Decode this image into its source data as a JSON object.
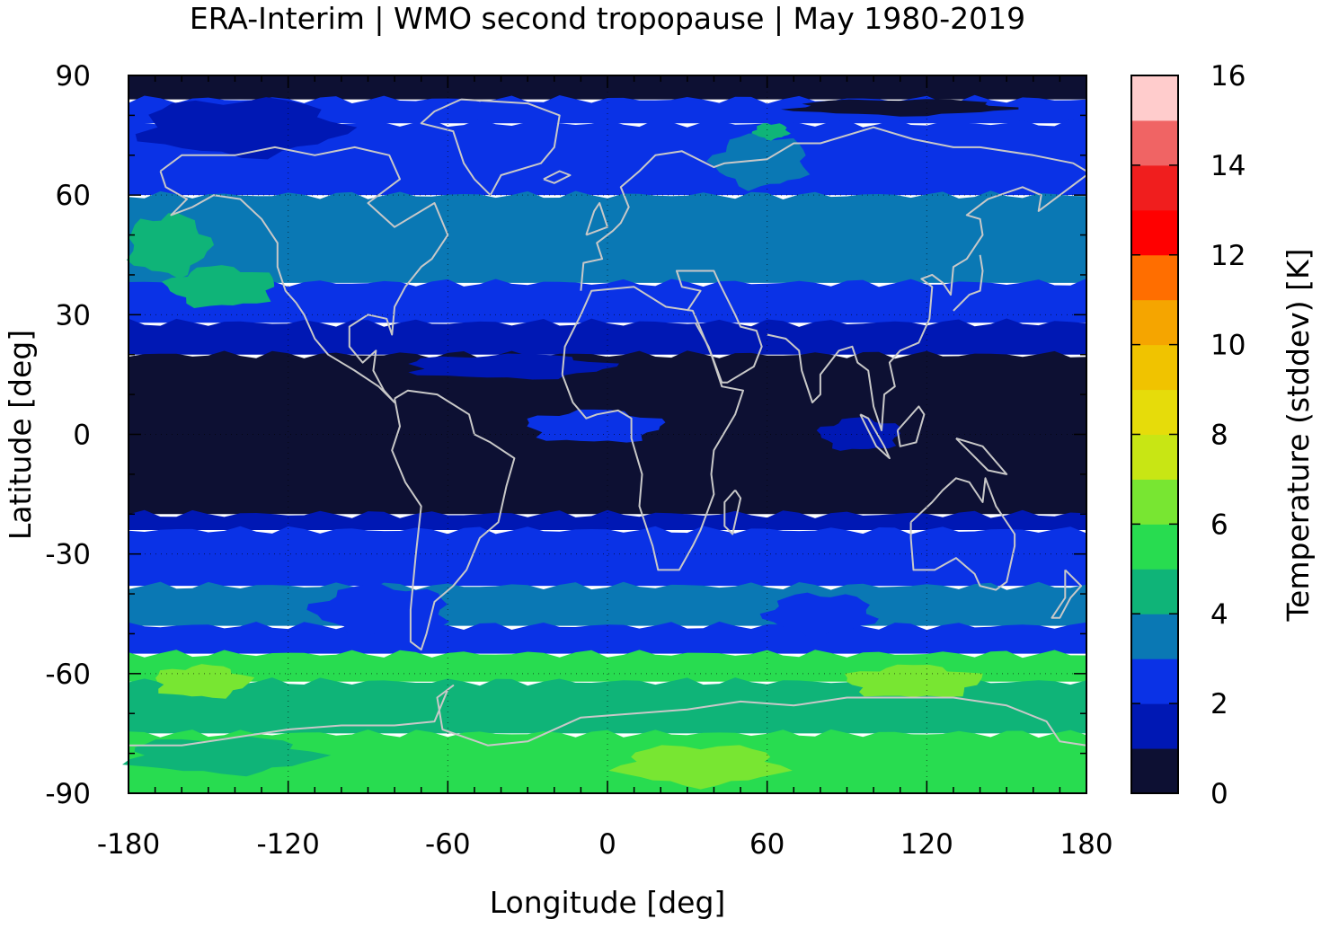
{
  "chart_data": {
    "type": "heatmap",
    "title": "ERA-Interim | WMO second tropopause | May 1980-2019",
    "xlabel": "Longitude [deg]",
    "ylabel": "Latitude [deg]",
    "colorbar_label": "Temperature (stddev) [K]",
    "xlim": [
      -180,
      180
    ],
    "ylim": [
      -90,
      90
    ],
    "xticks": [
      -180,
      -120,
      -60,
      0,
      60,
      120,
      180
    ],
    "yticks": [
      90,
      60,
      30,
      0,
      -30,
      -60,
      -90
    ],
    "xtick_labels": [
      "-180",
      "-120",
      "-60",
      "0",
      "60",
      "120",
      "180"
    ],
    "ytick_labels": [
      "90",
      "60",
      "30",
      "0",
      "-30",
      "-60",
      "-90"
    ],
    "colorbar_ticks": [
      0,
      2,
      4,
      6,
      8,
      10,
      12,
      14,
      16
    ],
    "colorbar_tick_labels": [
      "0",
      "2",
      "4",
      "6",
      "8",
      "10",
      "12",
      "14",
      "16"
    ],
    "colorbar_range": [
      0,
      16
    ],
    "colorbar_step": 1,
    "colorbar_colors": [
      "#0d1033",
      "#0018b4",
      "#0a32e6",
      "#0a78b4",
      "#0fb478",
      "#28dc50",
      "#78e632",
      "#c8e614",
      "#e6dc0a",
      "#f0c300",
      "#f5a500",
      "#ff6e00",
      "#ff0000",
      "#f01e1e",
      "#f06464",
      "#ffcccc"
    ],
    "grid": true,
    "coastlines_color": "#c8c8c8",
    "latitude_bands": [
      {
        "lat_range": [
          84,
          90
        ],
        "value": 0.5
      },
      {
        "lat_range": [
          78,
          84
        ],
        "value": 2.5
      },
      {
        "lat_range": [
          60,
          78
        ],
        "value": 2.5
      },
      {
        "lat_range": [
          38,
          60
        ],
        "value": 3.5
      },
      {
        "lat_range": [
          28,
          38
        ],
        "value": 2.5
      },
      {
        "lat_range": [
          20,
          28
        ],
        "value": 1.5
      },
      {
        "lat_range": [
          -20,
          20
        ],
        "value": 0.5
      },
      {
        "lat_range": [
          -24,
          -20
        ],
        "value": 1.5
      },
      {
        "lat_range": [
          -38,
          -24
        ],
        "value": 2.5
      },
      {
        "lat_range": [
          -48,
          -38
        ],
        "value": 3.5
      },
      {
        "lat_range": [
          -55,
          -48
        ],
        "value": 2.5
      },
      {
        "lat_range": [
          -62,
          -55
        ],
        "value": 5.5
      },
      {
        "lat_range": [
          -75,
          -62
        ],
        "value": 4.5
      },
      {
        "lat_range": [
          -90,
          -75
        ],
        "value": 5.5
      }
    ],
    "patches": [
      {
        "lon_range": [
          5,
          65
        ],
        "lat_range": [
          -88,
          -78
        ],
        "value": 6.5
      },
      {
        "lon_range": [
          -180,
          -110
        ],
        "lat_range": [
          -85,
          -76
        ],
        "value": 4.5
      },
      {
        "lon_range": [
          -170,
          -135
        ],
        "lat_range": [
          -66,
          -58
        ],
        "value": 6.5
      },
      {
        "lon_range": [
          90,
          140
        ],
        "lat_range": [
          -66,
          -58
        ],
        "value": 6.5
      },
      {
        "lon_range": [
          -165,
          -125
        ],
        "lat_range": [
          32,
          42
        ],
        "value": 4.5
      },
      {
        "lon_range": [
          40,
          75
        ],
        "lat_range": [
          62,
          75
        ],
        "value": 3.5
      },
      {
        "lon_range": [
          55,
          68
        ],
        "lat_range": [
          74,
          78
        ],
        "value": 4.5
      },
      {
        "lon_range": [
          -175,
          -100
        ],
        "lat_range": [
          70,
          84
        ],
        "value": 1.5
      },
      {
        "lon_range": [
          -75,
          0
        ],
        "lat_range": [
          14,
          20
        ],
        "value": 1.5
      },
      {
        "lon_range": [
          -30,
          20
        ],
        "lat_range": [
          -2,
          6
        ],
        "value": 2.5
      },
      {
        "lon_range": [
          80,
          110
        ],
        "lat_range": [
          -4,
          4
        ],
        "value": 1.5
      },
      {
        "lon_range": [
          -110,
          -60
        ],
        "lat_range": [
          -50,
          -38
        ],
        "value": 2.5
      },
      {
        "lon_range": [
          60,
          100
        ],
        "lat_range": [
          -50,
          -40
        ],
        "value": 2.5
      },
      {
        "lon_range": [
          70,
          150
        ],
        "lat_range": [
          80,
          84
        ],
        "value": 0.5
      },
      {
        "lon_range": [
          -180,
          -150
        ],
        "lat_range": [
          40,
          55
        ],
        "value": 4.5
      }
    ]
  }
}
